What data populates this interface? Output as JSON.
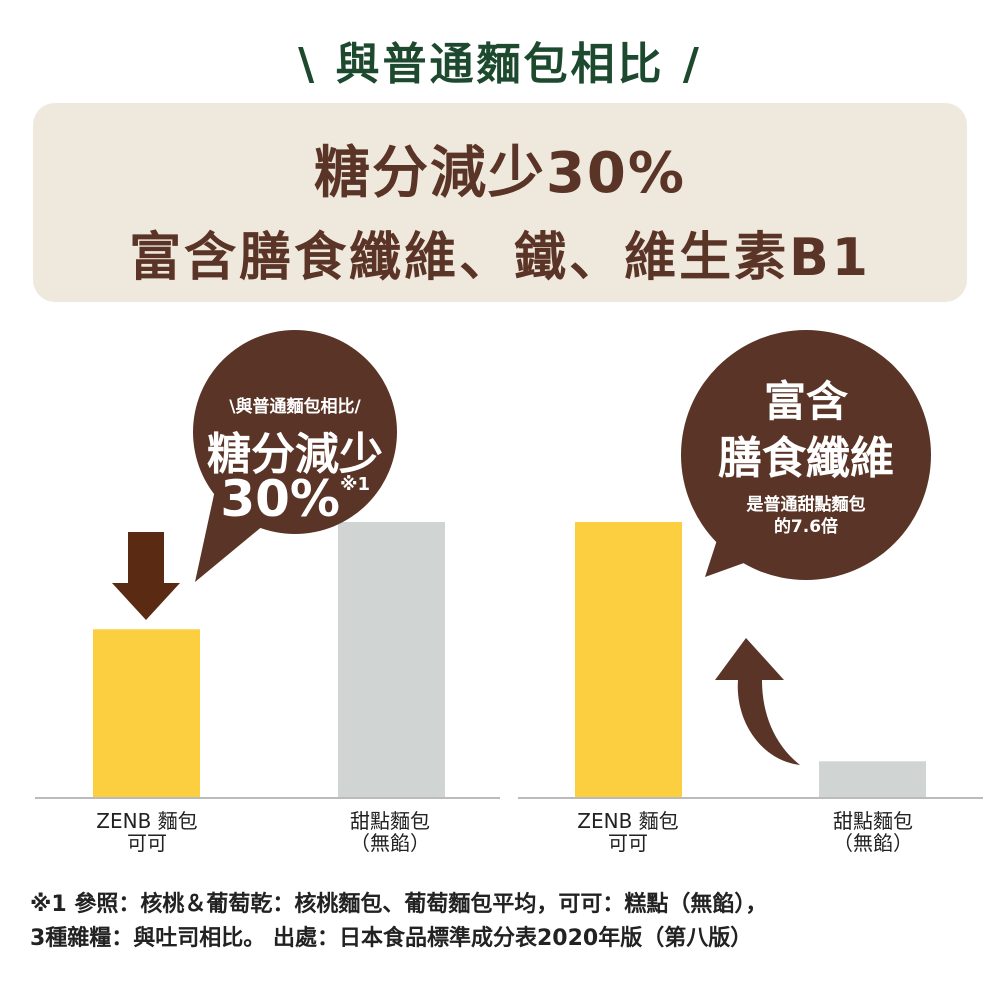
{
  "title": "\\ 與普通麵包相比 /",
  "headline": {
    "line1": "糖分減少30%",
    "line2": "富含膳食纖維、鐵、維生素B1"
  },
  "bubble_left": {
    "sub": "\\與普通麵包相比/",
    "main": "糖分減少",
    "value": "30%",
    "note": "※1"
  },
  "bubble_right": {
    "line1": "富含",
    "line2": "膳食纖維",
    "sub1": "是普通甜點麵包",
    "sub2": "的7.6倍"
  },
  "colors": {
    "zenb": "#fccf40",
    "other": "#d0d5d3",
    "brown": "#5a3426",
    "title": "#1d4a2e"
  },
  "chart_data": [
    {
      "type": "bar",
      "categories": [
        "ZENB 麵包 可可",
        "甜點麵包（無餡）"
      ],
      "values": [
        0.61,
        1.0
      ],
      "ylabel": "",
      "xlabel": ""
    },
    {
      "type": "bar",
      "categories": [
        "ZENB 麵包 可可",
        "甜點麵包（無餡）"
      ],
      "values": [
        1.0,
        0.13
      ],
      "ylabel": "",
      "xlabel": ""
    }
  ],
  "labels": {
    "zenb1": "ZENB 麵包",
    "zenb2": "可可",
    "sweet1": "甜點麵包",
    "sweet2": "（無餡）"
  },
  "footnote": {
    "line1": "※1  參照：核桃＆葡萄乾：核桃麵包、葡萄麵包平均，可可：糕點（無餡），",
    "line2": "3種雜糧：與吐司相比。 出處：日本食品標準成分表2020年版（第八版）"
  }
}
